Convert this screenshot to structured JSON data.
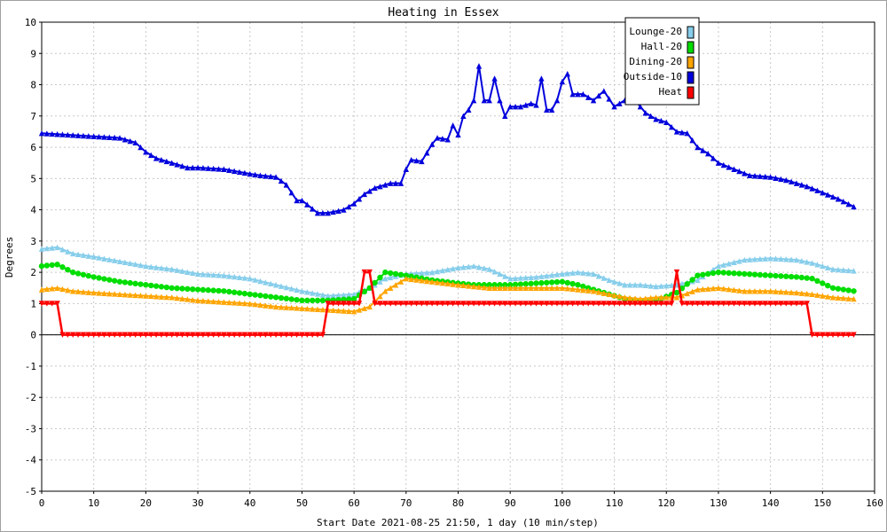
{
  "chart_data": {
    "type": "line",
    "title": "Heating in Essex",
    "xlabel": "Start Date 2021-08-25 21:50, 1 day (10 min/step)",
    "ylabel": "Degrees",
    "xlim": [
      0,
      160
    ],
    "ylim": [
      -5,
      10
    ],
    "x_ticks": [
      0,
      10,
      20,
      30,
      40,
      50,
      60,
      70,
      80,
      90,
      100,
      110,
      120,
      130,
      140,
      150,
      160
    ],
    "y_ticks": [
      -5,
      -4,
      -3,
      -2,
      -1,
      0,
      1,
      2,
      3,
      4,
      5,
      6,
      7,
      8,
      9,
      10
    ],
    "grid": true,
    "legend_position": "top-right",
    "series": [
      {
        "name": "Lounge-20",
        "color": "#87ceeb",
        "marker": "triangle",
        "x": [
          0,
          3,
          6,
          10,
          15,
          20,
          25,
          30,
          35,
          40,
          45,
          50,
          55,
          60,
          63,
          66,
          70,
          75,
          80,
          83,
          86,
          90,
          95,
          100,
          103,
          106,
          109,
          112,
          115,
          118,
          122,
          126,
          130,
          135,
          140,
          145,
          148,
          152,
          156
        ],
        "y": [
          2.75,
          2.8,
          2.6,
          2.5,
          2.35,
          2.2,
          2.1,
          1.95,
          1.9,
          1.8,
          1.6,
          1.4,
          1.25,
          1.3,
          1.5,
          1.8,
          1.95,
          2.0,
          2.15,
          2.2,
          2.1,
          1.8,
          1.85,
          1.95,
          2.0,
          1.95,
          1.75,
          1.6,
          1.6,
          1.55,
          1.6,
          1.75,
          2.2,
          2.4,
          2.45,
          2.4,
          2.3,
          2.1,
          2.05
        ]
      },
      {
        "name": "Hall-20",
        "color": "#00dd00",
        "marker": "circle",
        "x": [
          0,
          3,
          6,
          10,
          15,
          20,
          25,
          30,
          35,
          40,
          45,
          50,
          55,
          60,
          63,
          66,
          70,
          75,
          80,
          83,
          86,
          90,
          95,
          100,
          103,
          106,
          109,
          112,
          115,
          118,
          122,
          126,
          130,
          135,
          140,
          145,
          148,
          152,
          156
        ],
        "y": [
          2.2,
          2.25,
          2.0,
          1.85,
          1.7,
          1.6,
          1.5,
          1.45,
          1.4,
          1.3,
          1.2,
          1.1,
          1.1,
          1.15,
          1.5,
          2.0,
          1.9,
          1.75,
          1.65,
          1.6,
          1.6,
          1.6,
          1.65,
          1.7,
          1.6,
          1.45,
          1.3,
          1.15,
          1.1,
          1.1,
          1.35,
          1.9,
          2.0,
          1.95,
          1.9,
          1.85,
          1.8,
          1.5,
          1.4
        ]
      },
      {
        "name": "Dining-20",
        "color": "#ffa500",
        "marker": "triangle",
        "x": [
          0,
          3,
          6,
          10,
          15,
          20,
          25,
          30,
          35,
          40,
          45,
          50,
          55,
          60,
          63,
          66,
          70,
          75,
          80,
          83,
          86,
          90,
          95,
          100,
          103,
          106,
          109,
          112,
          115,
          118,
          122,
          126,
          130,
          135,
          140,
          145,
          148,
          152,
          156
        ],
        "y": [
          1.45,
          1.5,
          1.4,
          1.35,
          1.3,
          1.25,
          1.2,
          1.1,
          1.05,
          1.0,
          0.9,
          0.85,
          0.8,
          0.75,
          0.9,
          1.4,
          1.8,
          1.7,
          1.6,
          1.55,
          1.5,
          1.5,
          1.5,
          1.5,
          1.45,
          1.4,
          1.3,
          1.2,
          1.15,
          1.2,
          1.2,
          1.45,
          1.5,
          1.4,
          1.4,
          1.35,
          1.3,
          1.2,
          1.15
        ]
      },
      {
        "name": "Outside-10",
        "color": "#0000dd",
        "marker": "triangle",
        "x": [
          0,
          5,
          10,
          15,
          18,
          20,
          22,
          25,
          28,
          30,
          35,
          40,
          42,
          45,
          47,
          49,
          50,
          53,
          55,
          58,
          60,
          62,
          64,
          67,
          69,
          70,
          71,
          73,
          75,
          76,
          78,
          79,
          80,
          81,
          82,
          83,
          84,
          85,
          86,
          87,
          88,
          89,
          90,
          92,
          94,
          95,
          96,
          97,
          98,
          99,
          100,
          101,
          102,
          104,
          106,
          108,
          110,
          112,
          114,
          116,
          118,
          120,
          122,
          124,
          126,
          128,
          130,
          133,
          136,
          140,
          143,
          147,
          150,
          153,
          156
        ],
        "y": [
          6.45,
          6.4,
          6.35,
          6.3,
          6.15,
          5.85,
          5.65,
          5.5,
          5.35,
          5.35,
          5.3,
          5.15,
          5.1,
          5.05,
          4.8,
          4.3,
          4.3,
          3.9,
          3.9,
          4.0,
          4.2,
          4.5,
          4.7,
          4.85,
          4.85,
          5.3,
          5.6,
          5.55,
          6.1,
          6.3,
          6.25,
          6.7,
          6.4,
          7.0,
          7.2,
          7.5,
          8.6,
          7.5,
          7.5,
          8.2,
          7.5,
          7.0,
          7.3,
          7.3,
          7.4,
          7.35,
          8.2,
          7.2,
          7.2,
          7.5,
          8.1,
          8.35,
          7.7,
          7.7,
          7.5,
          7.8,
          7.3,
          7.5,
          7.5,
          7.1,
          6.9,
          6.8,
          6.5,
          6.45,
          6.0,
          5.8,
          5.5,
          5.3,
          5.1,
          5.05,
          4.95,
          4.75,
          4.55,
          4.35,
          4.1
        ]
      },
      {
        "name": "Heat",
        "color": "#ff0000",
        "marker": "triangle-down",
        "x": [
          0,
          3,
          4,
          10,
          20,
          30,
          40,
          50,
          54,
          55,
          58,
          61,
          62,
          63,
          64,
          65,
          70,
          80,
          90,
          100,
          110,
          121,
          122,
          123,
          130,
          140,
          147,
          148,
          152,
          156
        ],
        "y": [
          1,
          1,
          0,
          0,
          0,
          0,
          0,
          0,
          0,
          1,
          1,
          1,
          2,
          2,
          1,
          1,
          1,
          1,
          1,
          1,
          1,
          1,
          2,
          1,
          1,
          1,
          1,
          0,
          0,
          0
        ]
      }
    ]
  }
}
